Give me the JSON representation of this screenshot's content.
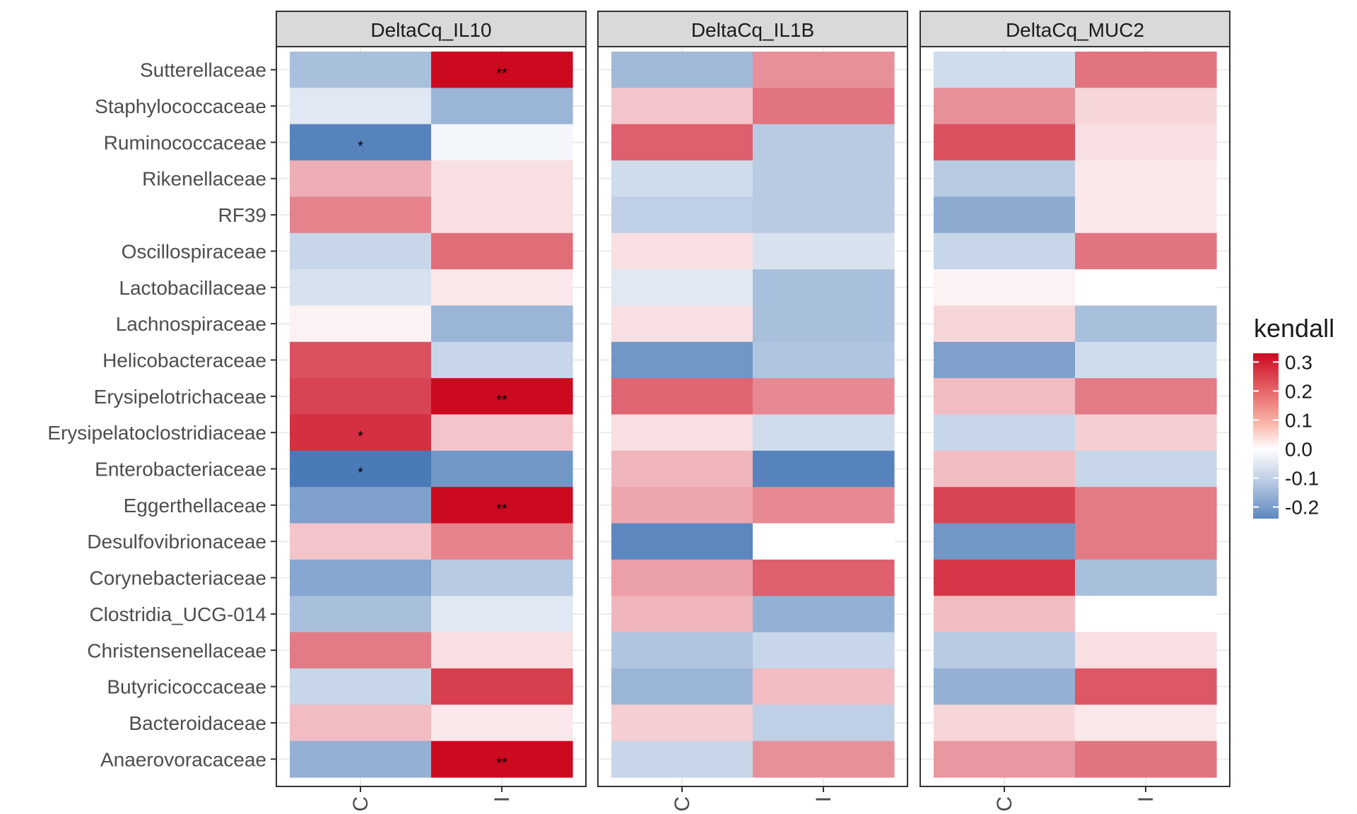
{
  "chart_data": {
    "type": "heatmap",
    "rows": [
      "Sutterellaceae",
      "Staphylococcaceae",
      "Ruminococcaceae",
      "Rikenellaceae",
      "RF39",
      "Oscillospiraceae",
      "Lactobacillaceae",
      "Lachnospiraceae",
      "Helicobacteraceae",
      "Erysipelotrichaceae",
      "Erysipelatoclostridiaceae",
      "Enterobacteriaceae",
      "Eggerthellaceae",
      "Desulfovibrionaceae",
      "Corynebacteriaceae",
      "Clostridia_UCG-014",
      "Christensenellaceae",
      "Butyricicoccaceae",
      "Bacteroidaceae",
      "Anaerovoracaceae"
    ],
    "columns": [
      "C",
      "I"
    ],
    "legend": {
      "title": "kendall",
      "ticks": [
        "0.3",
        "0.2",
        "0.1",
        "0.0",
        "-0.1",
        "-0.2"
      ],
      "tick_values": [
        0.3,
        0.2,
        0.1,
        0.0,
        -0.1,
        -0.2
      ],
      "range": [
        -0.24,
        0.33
      ],
      "colors": {
        "low": "#4a7ab7",
        "mid": "#ffffff",
        "high": "#cc0a1f"
      }
    },
    "facets": [
      {
        "title": "DeltaCq_IL10",
        "values": [
          [
            -0.1,
            0.33
          ],
          [
            -0.03,
            -0.12
          ],
          [
            -0.22,
            -0.01
          ],
          [
            0.09,
            0.03
          ],
          [
            0.15,
            0.03
          ],
          [
            -0.06,
            0.18
          ],
          [
            -0.04,
            0.02
          ],
          [
            0.01,
            -0.12
          ],
          [
            0.22,
            -0.06
          ],
          [
            0.24,
            0.33
          ],
          [
            0.27,
            0.06
          ],
          [
            -0.24,
            -0.18
          ],
          [
            -0.16,
            0.33
          ],
          [
            0.06,
            0.15
          ],
          [
            -0.15,
            -0.08
          ],
          [
            -0.1,
            -0.03
          ],
          [
            0.16,
            0.03
          ],
          [
            -0.06,
            0.25
          ],
          [
            0.07,
            0.02
          ],
          [
            -0.13,
            0.33
          ]
        ],
        "labels": [
          [
            "",
            "**"
          ],
          [
            "",
            ""
          ],
          [
            "*",
            ""
          ],
          [
            "",
            ""
          ],
          [
            "",
            ""
          ],
          [
            "",
            ""
          ],
          [
            "",
            ""
          ],
          [
            "",
            ""
          ],
          [
            "",
            ""
          ],
          [
            "",
            "**"
          ],
          [
            "*",
            ""
          ],
          [
            "*",
            ""
          ],
          [
            "",
            "**"
          ],
          [
            "",
            ""
          ],
          [
            "",
            ""
          ],
          [
            "",
            ""
          ],
          [
            "",
            ""
          ],
          [
            "",
            ""
          ],
          [
            "",
            ""
          ],
          [
            "",
            "**"
          ]
        ]
      },
      {
        "title": "DeltaCq_IL1B",
        "values": [
          [
            -0.11,
            0.13
          ],
          [
            0.06,
            0.17
          ],
          [
            0.2,
            -0.08
          ],
          [
            -0.05,
            -0.08
          ],
          [
            -0.07,
            -0.08
          ],
          [
            0.03,
            -0.04
          ],
          [
            -0.03,
            -0.1
          ],
          [
            0.03,
            -0.1
          ],
          [
            -0.18,
            -0.09
          ],
          [
            0.19,
            0.14
          ],
          [
            0.03,
            -0.05
          ],
          [
            0.08,
            -0.22
          ],
          [
            0.1,
            0.14
          ],
          [
            -0.21,
            0.0
          ],
          [
            0.11,
            0.2
          ],
          [
            0.08,
            -0.13
          ],
          [
            -0.09,
            -0.06
          ],
          [
            -0.12,
            0.07
          ],
          [
            0.05,
            -0.07
          ],
          [
            -0.06,
            0.13
          ]
        ],
        "labels": [
          [
            "",
            ""
          ],
          [
            "",
            ""
          ],
          [
            "",
            ""
          ],
          [
            "",
            ""
          ],
          [
            "",
            ""
          ],
          [
            "",
            ""
          ],
          [
            "",
            ""
          ],
          [
            "",
            ""
          ],
          [
            "",
            ""
          ],
          [
            "",
            ""
          ],
          [
            "",
            ""
          ],
          [
            "",
            ""
          ],
          [
            "",
            ""
          ],
          [
            "",
            ""
          ],
          [
            "",
            ""
          ],
          [
            "",
            ""
          ],
          [
            "",
            ""
          ],
          [
            "",
            ""
          ],
          [
            "",
            ""
          ],
          [
            "",
            ""
          ]
        ]
      },
      {
        "title": "DeltaCq_MUC2",
        "values": [
          [
            -0.05,
            0.17
          ],
          [
            0.13,
            0.04
          ],
          [
            0.22,
            0.03
          ],
          [
            -0.08,
            0.02
          ],
          [
            -0.14,
            0.02
          ],
          [
            -0.06,
            0.17
          ],
          [
            0.01,
            0.0
          ],
          [
            0.04,
            -0.1
          ],
          [
            -0.16,
            -0.05
          ],
          [
            0.07,
            0.16
          ],
          [
            -0.06,
            0.05
          ],
          [
            0.07,
            -0.06
          ],
          [
            0.24,
            0.16
          ],
          [
            -0.18,
            0.16
          ],
          [
            0.26,
            -0.1
          ],
          [
            0.07,
            0.0
          ],
          [
            -0.08,
            0.03
          ],
          [
            -0.13,
            0.21
          ],
          [
            0.04,
            0.02
          ],
          [
            0.12,
            0.17
          ]
        ],
        "labels": [
          [
            "",
            ""
          ],
          [
            "",
            ""
          ],
          [
            "",
            ""
          ],
          [
            "",
            ""
          ],
          [
            "",
            ""
          ],
          [
            "",
            ""
          ],
          [
            "",
            ""
          ],
          [
            "",
            ""
          ],
          [
            "",
            ""
          ],
          [
            "",
            ""
          ],
          [
            "",
            ""
          ],
          [
            "",
            ""
          ],
          [
            "",
            ""
          ],
          [
            "",
            ""
          ],
          [
            "",
            ""
          ],
          [
            "",
            ""
          ],
          [
            "",
            ""
          ],
          [
            "",
            ""
          ],
          [
            "",
            ""
          ],
          [
            "",
            ""
          ]
        ]
      }
    ],
    "grid": true,
    "legend_position": "right"
  }
}
